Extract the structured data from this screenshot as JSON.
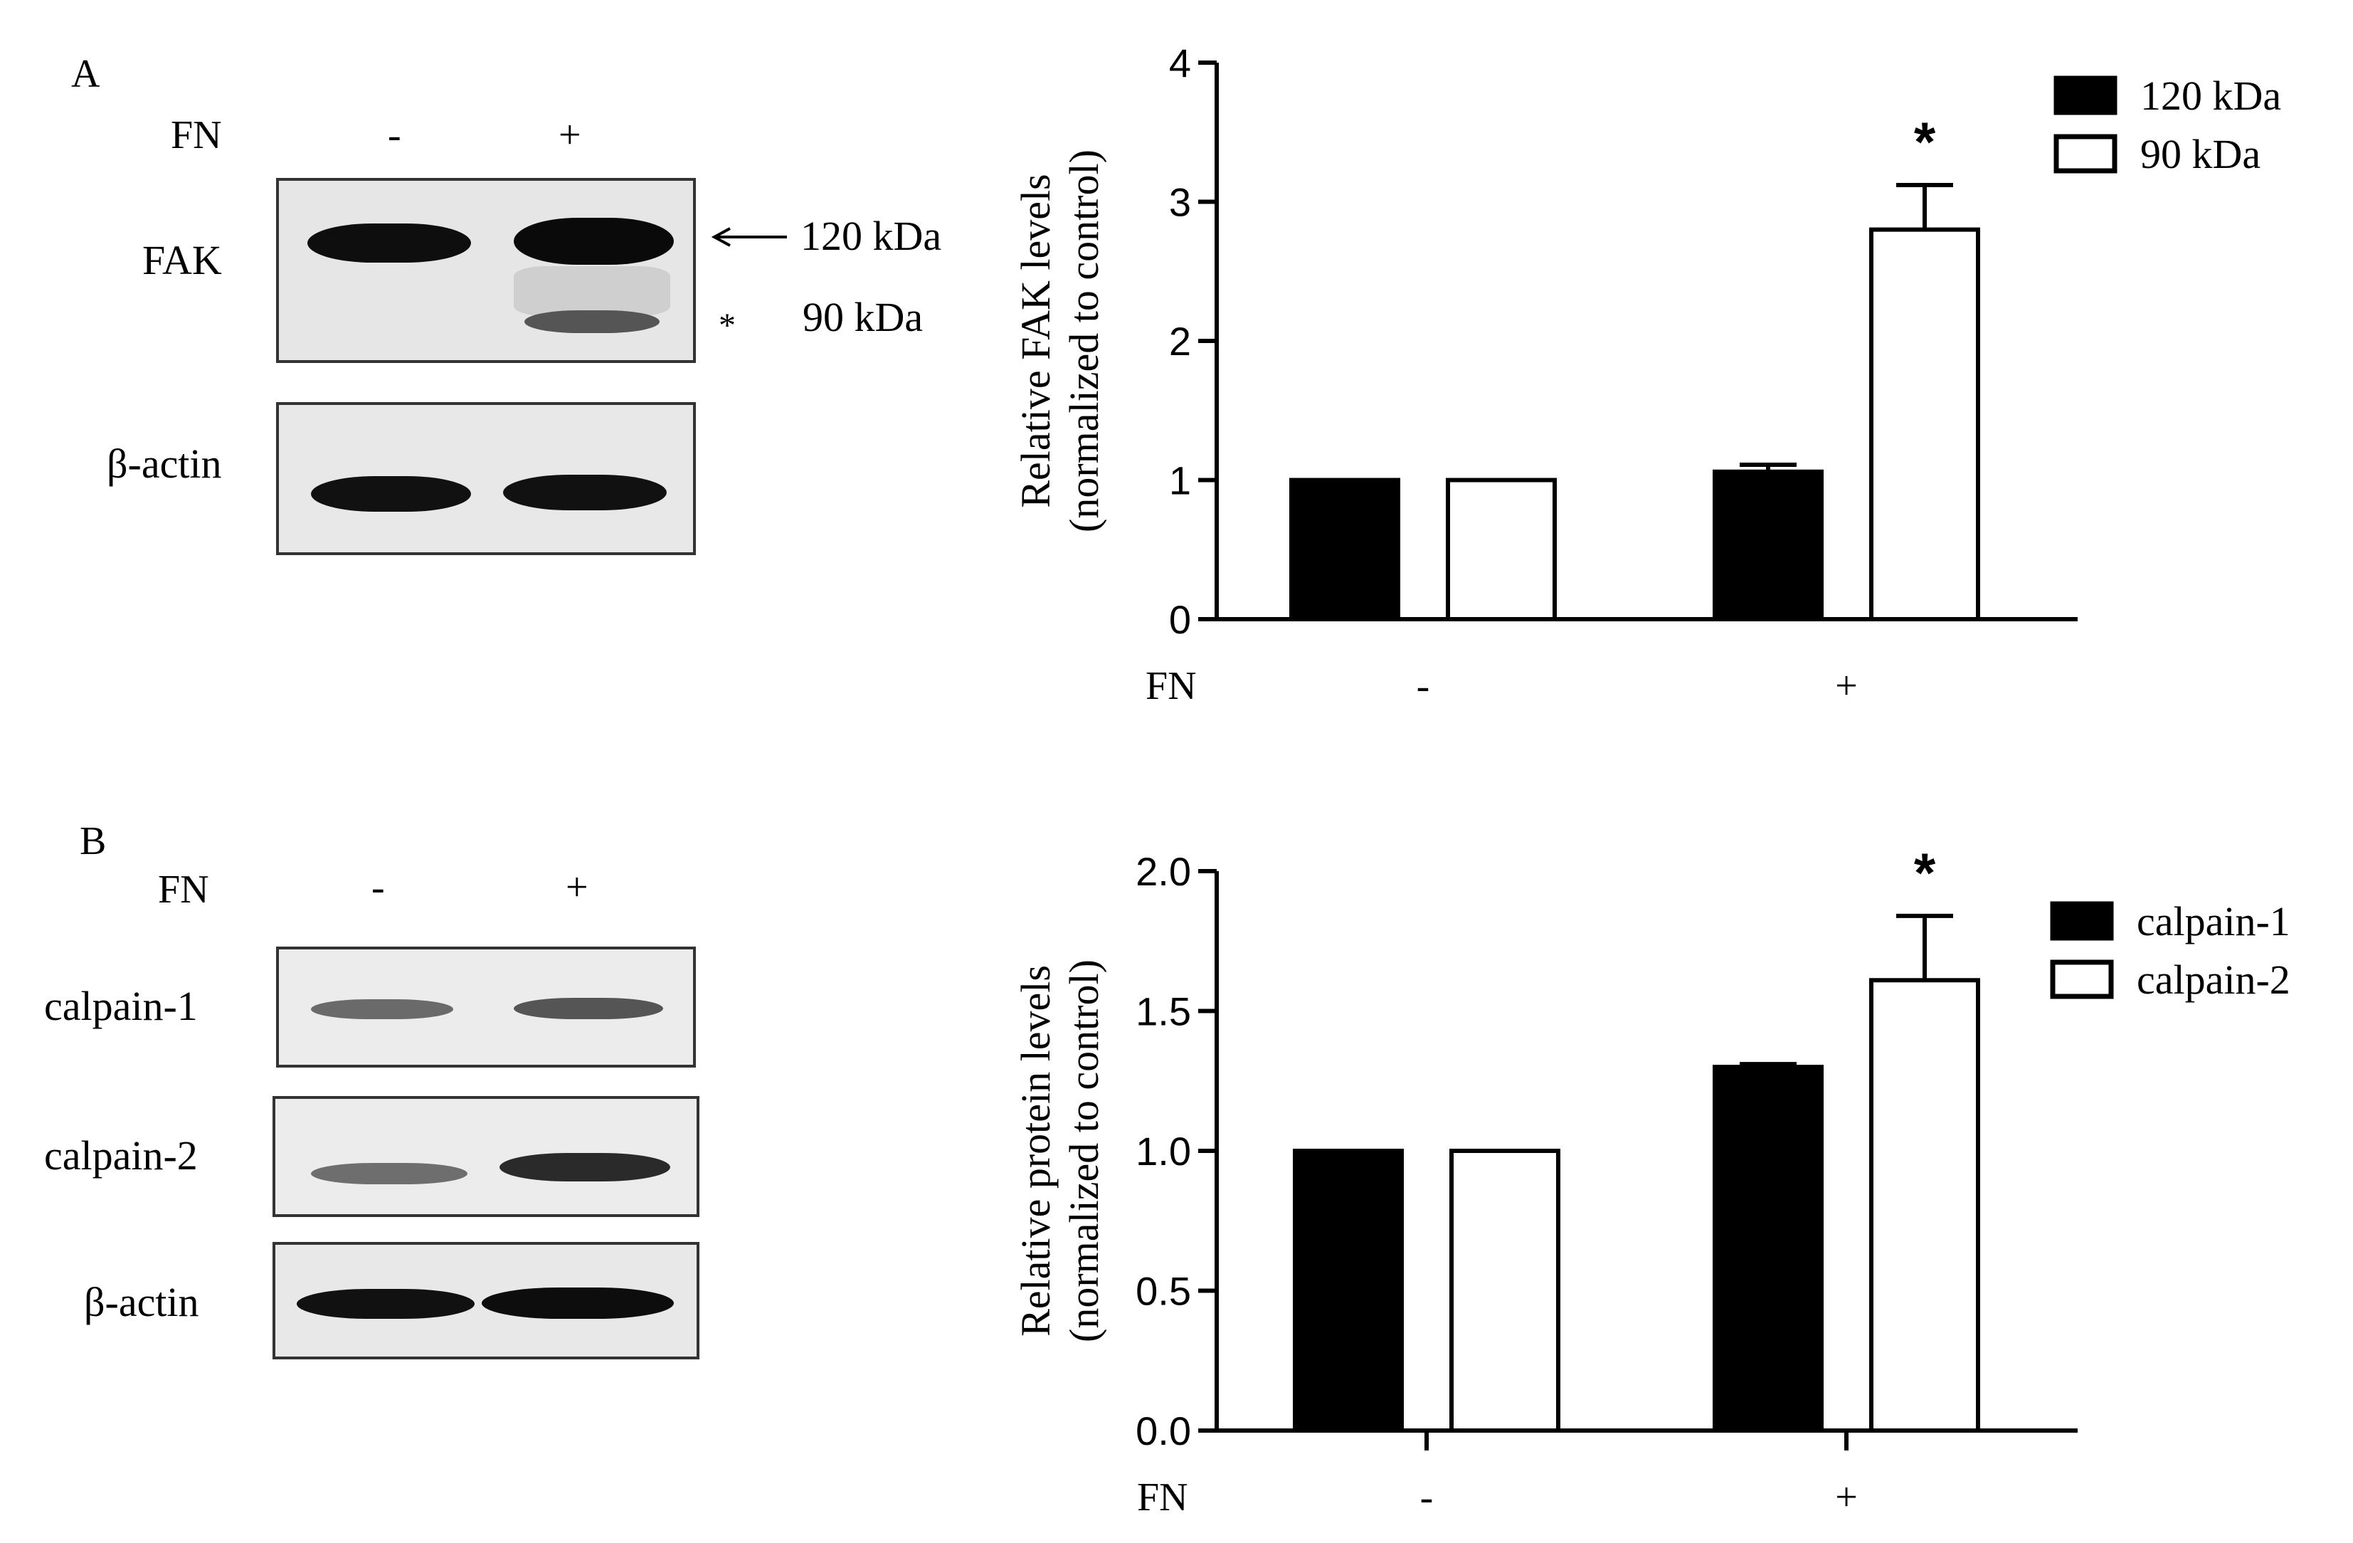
{
  "panelA": {
    "letter": "A",
    "treatment_label": "FN",
    "lanes": [
      "-",
      "+"
    ],
    "blots": [
      {
        "label": "FAK"
      },
      {
        "label": "β-actin"
      }
    ],
    "marker_120": "120 kDa",
    "marker_90": "90 kDa",
    "marker_star": "*"
  },
  "panelB": {
    "letter": "B",
    "treatment_label": "FN",
    "lanes": [
      "-",
      "+"
    ],
    "blots": [
      {
        "label": "calpain-1"
      },
      {
        "label": "calpain-2"
      },
      {
        "label": "β-actin"
      }
    ]
  },
  "colors": {
    "filled": "#000000",
    "open": "#ffffff",
    "stroke": "#000000"
  },
  "chart_data": [
    {
      "type": "bar",
      "ylabel_line1": "Relative FAK levels",
      "ylabel_line2": "(normalized to control)",
      "xlabel": "FN",
      "categories": [
        "-",
        "+"
      ],
      "ylim": [
        0,
        4
      ],
      "yticks": [
        0,
        1,
        2,
        3,
        4
      ],
      "ytick_labels": [
        "0",
        "1",
        "2",
        "3",
        "4"
      ],
      "series": [
        {
          "name": "120 kDa",
          "fill": "black",
          "values": [
            1.0,
            1.06
          ],
          "errors": [
            0,
            0.05
          ]
        },
        {
          "name": "90 kDa",
          "fill": "white",
          "values": [
            1.0,
            2.8
          ],
          "errors": [
            0,
            0.32
          ]
        }
      ],
      "significance": [
        {
          "category": "+",
          "series": "90 kDa",
          "mark": "*"
        }
      ],
      "legend": "top-right",
      "grid": false
    },
    {
      "type": "bar",
      "ylabel_line1": "Relative protein levels",
      "ylabel_line2": "(normalized to control)",
      "xlabel": "FN",
      "categories": [
        "-",
        "+"
      ],
      "ylim": [
        0,
        2.0
      ],
      "yticks": [
        0,
        0.5,
        1.0,
        1.5,
        2.0
      ],
      "ytick_labels": [
        "0.0",
        "0.5",
        "1.0",
        "1.5",
        "2.0"
      ],
      "series": [
        {
          "name": "calpain-1",
          "fill": "black",
          "values": [
            1.0,
            1.3
          ],
          "errors": [
            0,
            0.01
          ]
        },
        {
          "name": "calpain-2",
          "fill": "white",
          "values": [
            1.0,
            1.61
          ],
          "errors": [
            0,
            0.23
          ]
        }
      ],
      "significance": [
        {
          "category": "+",
          "series": "calpain-2",
          "mark": "*"
        }
      ],
      "legend": "top-right",
      "grid": false
    }
  ]
}
